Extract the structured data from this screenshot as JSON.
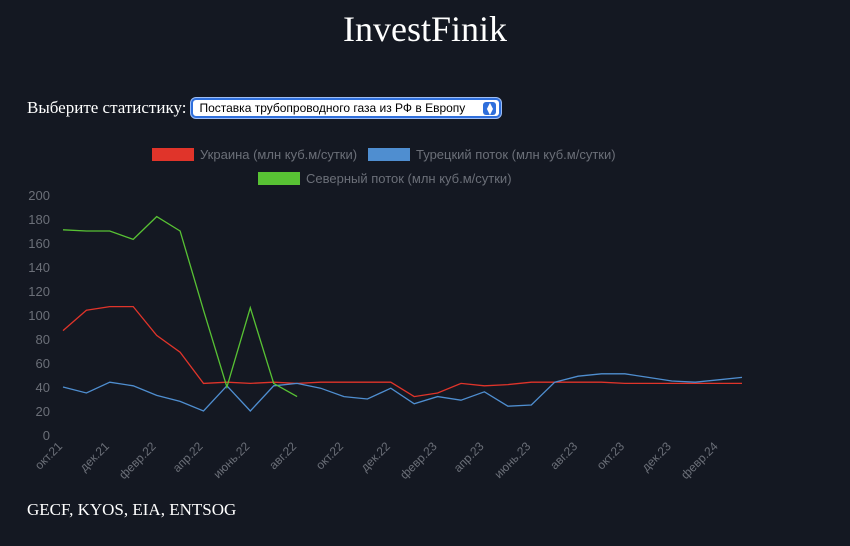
{
  "header": {
    "title": "InvestFinik"
  },
  "selector": {
    "label": "Выберите статистику:",
    "selected": "Поставка трубопроводного газа из РФ в Европу"
  },
  "footer": {
    "sources": "GECF, KYOS, EIA, ENTSOG"
  },
  "colors": {
    "background": "#141822",
    "ukraine": "#e0342a",
    "turkstream": "#4f8ed0",
    "nordstream": "#58c234",
    "axis_text": "#6b6f78"
  },
  "chart_data": {
    "type": "line",
    "title": "",
    "xlabel": "",
    "ylabel": "",
    "ylim": [
      0,
      200
    ],
    "yticks": [
      0,
      20,
      40,
      60,
      80,
      100,
      120,
      140,
      160,
      180,
      200
    ],
    "grid": false,
    "legend_position": "top",
    "x": [
      "окт.21",
      "нояб.21",
      "дек.21",
      "янв.22",
      "февр.22",
      "март.22",
      "апр.22",
      "май.22",
      "июнь.22",
      "июль.22",
      "авг.22",
      "сент.22",
      "окт.22",
      "нояб.22",
      "дек.22",
      "янв.23",
      "февр.23",
      "март.23",
      "апр.23",
      "май.23",
      "июнь.23",
      "июль.23",
      "авг.23",
      "сент.23",
      "окт.23",
      "нояб.23",
      "дек.23",
      "янв.24",
      "февр.24",
      "март.24"
    ],
    "xtick_labels": [
      "окт.21",
      "дек.21",
      "февр.22",
      "апр.22",
      "июнь.22",
      "авг.22",
      "окт.22",
      "дек.22",
      "февр.23",
      "апр.23",
      "июнь.23",
      "авг.23",
      "окт.23",
      "дек.23",
      "февр.24"
    ],
    "series": [
      {
        "name": "Украина (млн куб.м/сутки)",
        "color": "#e0342a",
        "values": [
          87,
          104,
          107,
          107,
          83,
          69,
          43,
          44,
          43,
          44,
          43,
          44,
          44,
          44,
          44,
          32,
          35,
          43,
          41,
          42,
          44,
          44,
          44,
          44,
          43,
          43,
          43,
          43,
          43,
          43
        ]
      },
      {
        "name": "Турецкий поток (млн куб.м/сутки)",
        "color": "#4f8ed0",
        "values": [
          40,
          35,
          44,
          41,
          33,
          28,
          20,
          41,
          20,
          41,
          43,
          39,
          32,
          30,
          39,
          26,
          32,
          29,
          36,
          24,
          25,
          44,
          49,
          51,
          51,
          48,
          45,
          44,
          46,
          48
        ]
      },
      {
        "name": "Северный поток (млн куб.м/сутки)",
        "color": "#58c234",
        "values": [
          171,
          170,
          170,
          163,
          182,
          170,
          104,
          40,
          106,
          43,
          32,
          null,
          null,
          null,
          null,
          null,
          null,
          null,
          null,
          null,
          null,
          null,
          null,
          null,
          null,
          null,
          null,
          null,
          null,
          null
        ]
      }
    ]
  }
}
